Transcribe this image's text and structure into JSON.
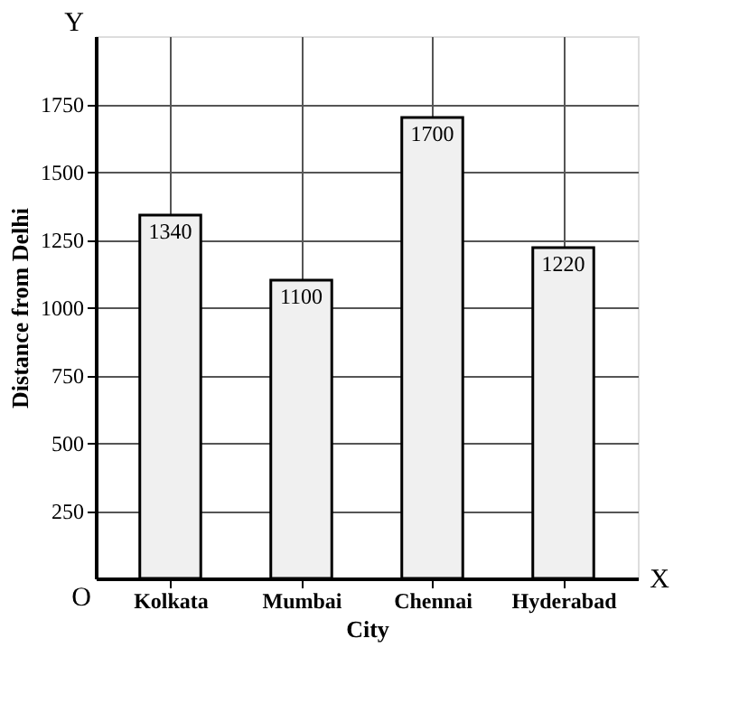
{
  "chart_data": {
    "type": "bar",
    "xlabel": "City",
    "ylabel": "Distance from Delhi",
    "categories": [
      "Kolkata",
      "Mumbai",
      "Chennai",
      "Hyderabad"
    ],
    "values": [
      1340,
      1100,
      1700,
      1220
    ],
    "color": "#f0f0f0",
    "ylim": [
      0,
      2000
    ],
    "yticks": [
      250,
      500,
      750,
      1000,
      1250,
      1500,
      1750
    ],
    "grid": true,
    "data_labels": true,
    "annotations": [
      "Y",
      "X",
      "O"
    ]
  }
}
